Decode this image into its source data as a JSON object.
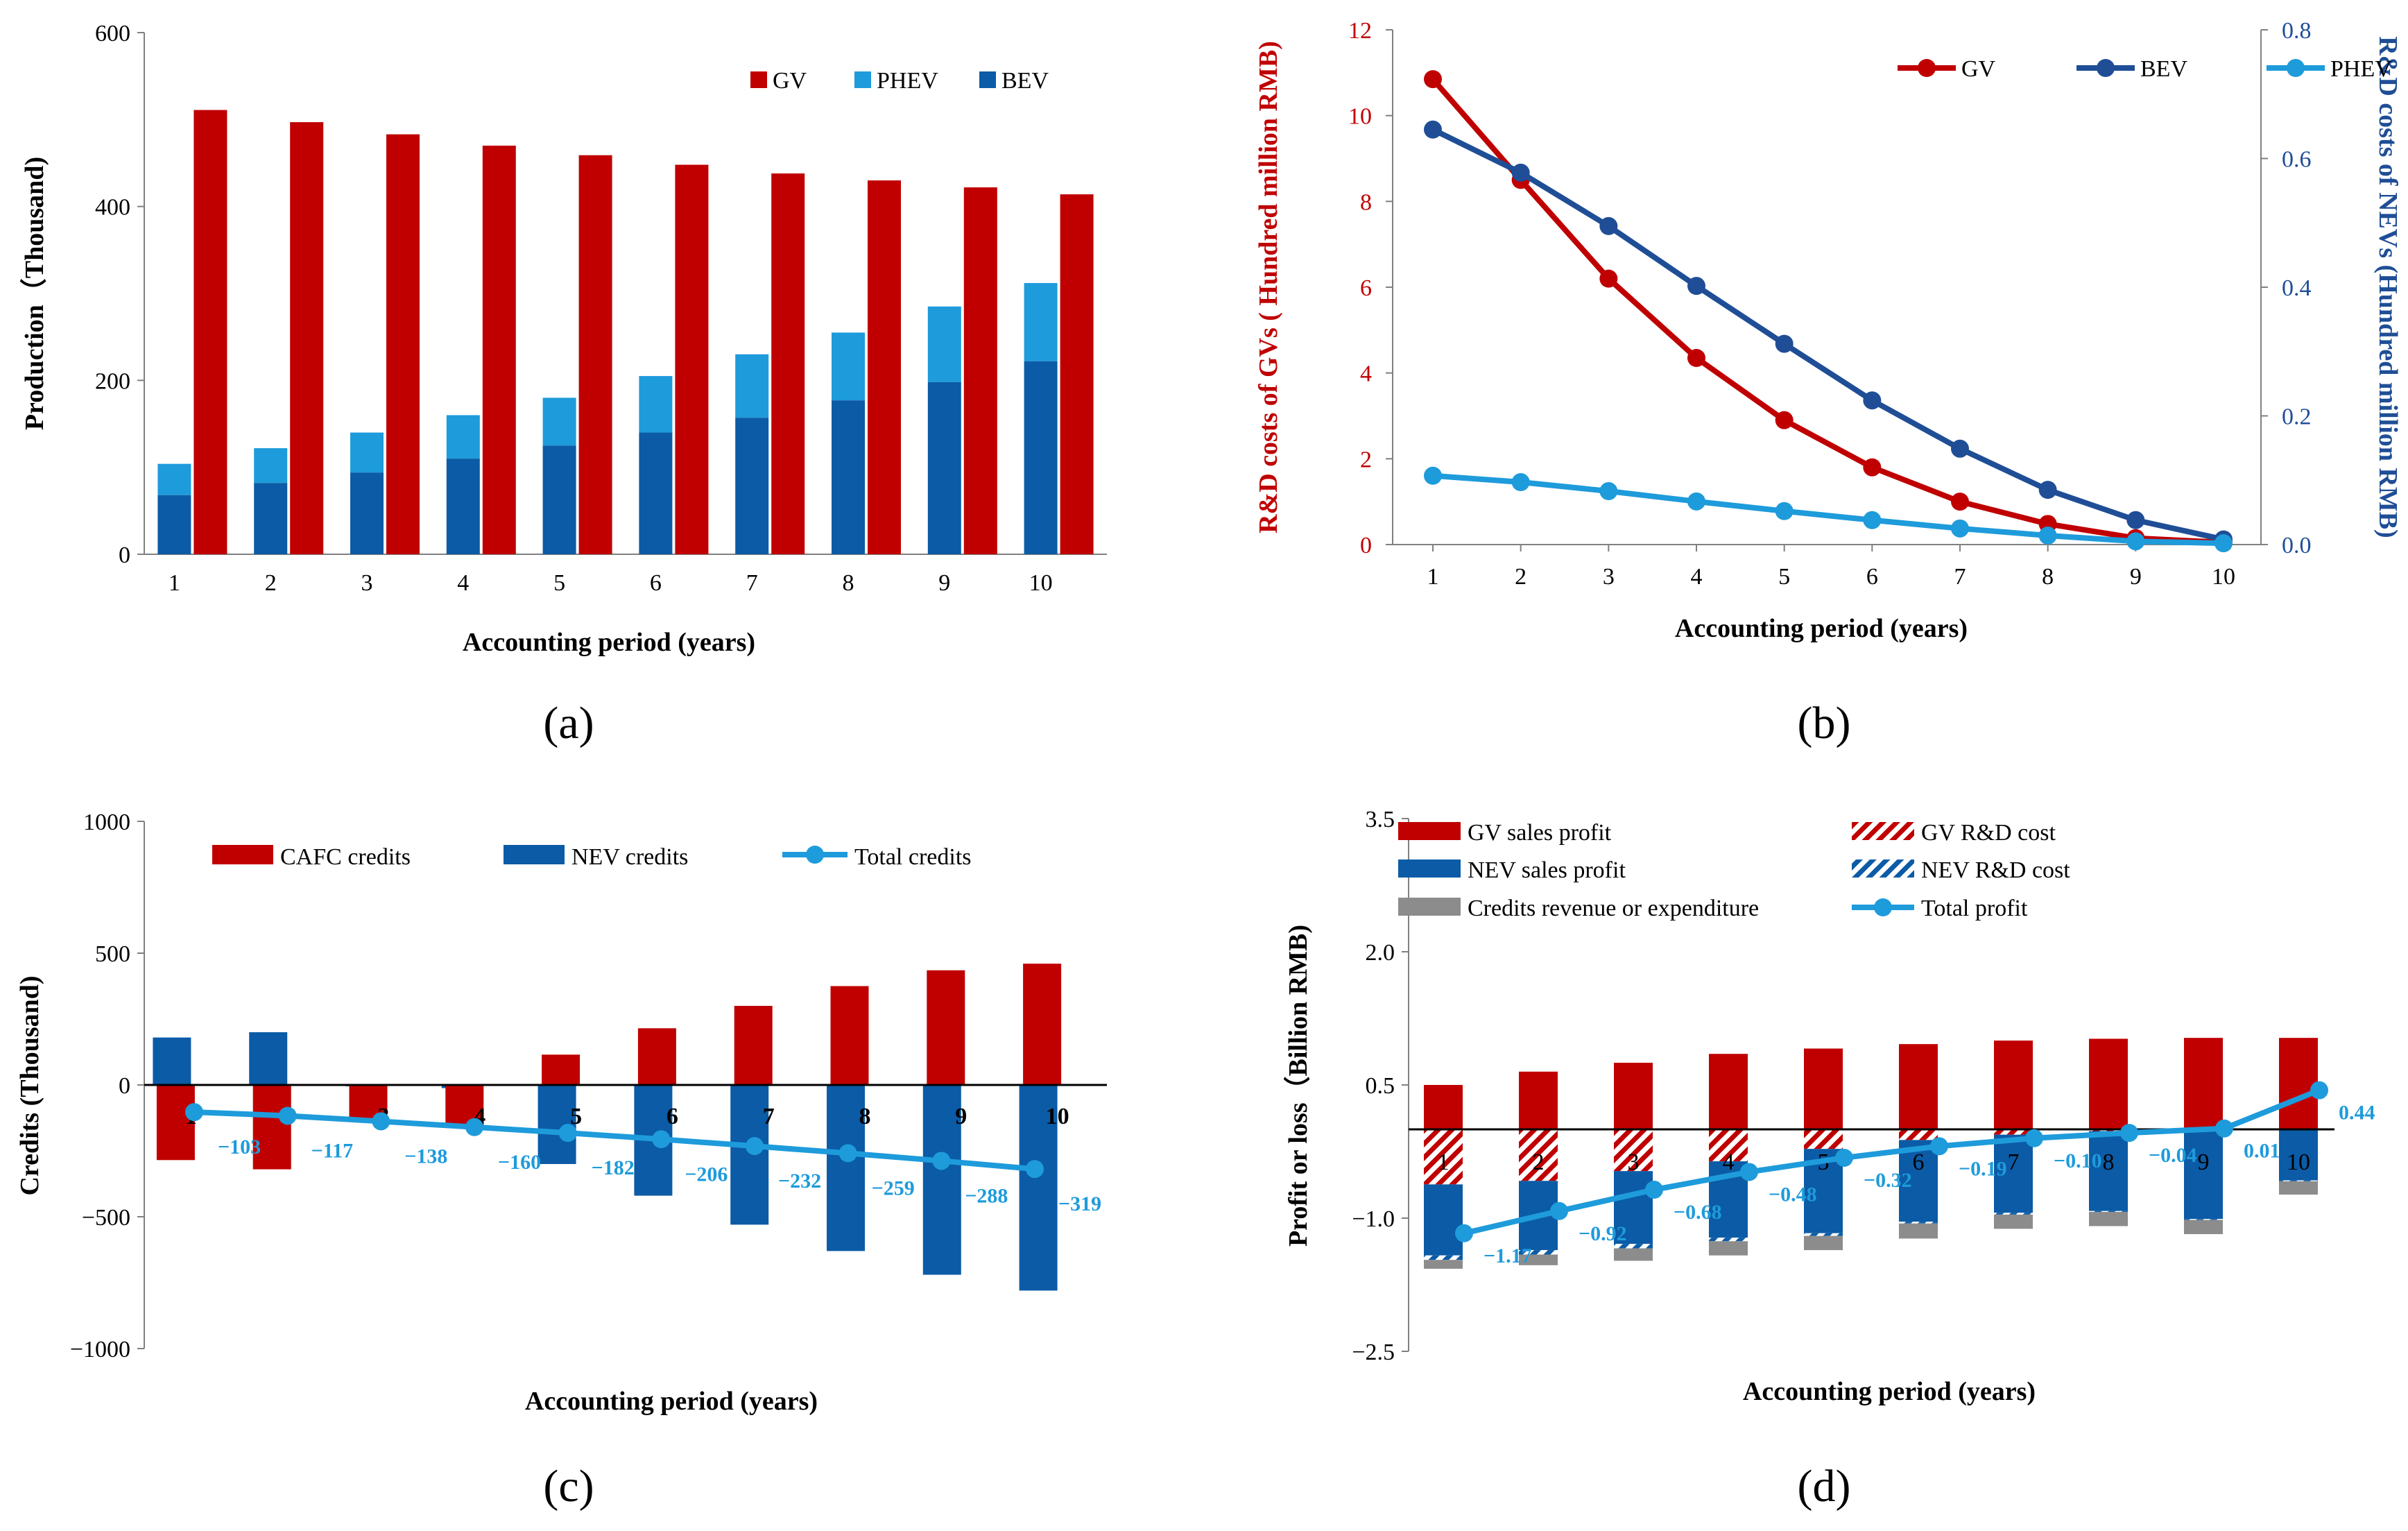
{
  "figure": {
    "captions": [
      "(a)",
      "(b)",
      "(c)",
      "(d)"
    ]
  },
  "colors": {
    "gv": "#C00000",
    "bev": "#0B5BA6",
    "phev": "#1E9BDB",
    "bev_line": "#1F4E96",
    "total": "#1E9BDB",
    "grey": "#8C8C8C",
    "axis_b_left": "#C00000",
    "axis_b_right": "#1F4E96"
  },
  "chart_data": [
    {
      "id": "a",
      "type": "bar",
      "title": "",
      "xlabel": "Accounting period (years)",
      "ylabel": "Production（Thousand)",
      "ylim": [
        0,
        600
      ],
      "yticks": [
        "0",
        "200",
        "400",
        "600"
      ],
      "categories": [
        "1",
        "2",
        "3",
        "4",
        "5",
        "6",
        "7",
        "8",
        "9",
        "10"
      ],
      "legend": [
        "GV",
        "PHEV",
        "BEV"
      ],
      "legend_position": "top-right",
      "series": [
        {
          "name": "GV",
          "values": [
            511,
            497,
            483,
            470,
            459,
            448,
            438,
            430,
            422,
            414
          ]
        },
        {
          "name": "PHEV",
          "values": [
            104,
            122,
            140,
            160,
            180,
            205,
            230,
            255,
            285,
            312
          ]
        },
        {
          "name": "BEV",
          "values": [
            68,
            82,
            94,
            110,
            125,
            140,
            157,
            177,
            198,
            222
          ]
        }
      ]
    },
    {
      "id": "b",
      "type": "line",
      "title": "",
      "xlabel": "Accounting period (years)",
      "ylabel_left": "R&D costs of GVs ( Hundred million RMB)",
      "ylabel_right": "R&D costs of NEVs (Hundred million RMB)",
      "ylim_left": [
        0,
        12
      ],
      "ylim_right": [
        0,
        0.8
      ],
      "yticks_left": [
        "0",
        "2",
        "4",
        "6",
        "8",
        "10",
        "12"
      ],
      "yticks_right": [
        "0.0",
        "0.2",
        "0.4",
        "0.6",
        "0.8"
      ],
      "categories": [
        "1",
        "2",
        "3",
        "4",
        "5",
        "6",
        "7",
        "8",
        "9",
        "10"
      ],
      "legend": [
        "GV",
        "BEV",
        "PHEV"
      ],
      "legend_position": "top-right",
      "series": [
        {
          "name": "GV",
          "axis": "left",
          "values": [
            10.85,
            8.5,
            6.2,
            4.35,
            2.9,
            1.8,
            1.0,
            0.48,
            0.15,
            0.05
          ]
        },
        {
          "name": "BEV",
          "axis": "right",
          "values": [
            0.645,
            0.578,
            0.495,
            0.402,
            0.312,
            0.224,
            0.149,
            0.085,
            0.038,
            0.008
          ]
        },
        {
          "name": "PHEV",
          "axis": "right",
          "values": [
            0.107,
            0.097,
            0.083,
            0.067,
            0.052,
            0.038,
            0.025,
            0.014,
            0.005,
            0.002
          ]
        }
      ]
    },
    {
      "id": "c",
      "type": "bar",
      "title": "",
      "xlabel": "Accounting period (years)",
      "ylabel": "Credits (Thousand)",
      "ylim": [
        -1000,
        1000
      ],
      "yticks": [
        "−1000",
        "−500",
        "0",
        "500",
        "1000"
      ],
      "categories": [
        "1",
        "2",
        "3",
        "4",
        "5",
        "6",
        "7",
        "8",
        "9",
        "10"
      ],
      "legend": [
        "CAFC credits",
        "NEV credits",
        "Total credits"
      ],
      "legend_position": "top",
      "series": [
        {
          "name": "CAFC credits",
          "values": [
            -285,
            -320,
            -140,
            -160,
            115,
            215,
            300,
            375,
            435,
            460
          ]
        },
        {
          "name": "NEV credits",
          "values": [
            180,
            200,
            -5,
            -12,
            -300,
            -420,
            -530,
            -630,
            -720,
            -780
          ]
        },
        {
          "name": "Total credits",
          "type": "line",
          "values": [
            -103,
            -117,
            -138,
            -160,
            -182,
            -206,
            -232,
            -259,
            -288,
            -319
          ]
        }
      ],
      "data_labels": [
        "−103",
        "−117",
        "−138",
        "−160",
        "−182",
        "−206",
        "−232",
        "−259",
        "−288",
        "−319"
      ]
    },
    {
      "id": "d",
      "type": "bar",
      "title": "",
      "xlabel": "Accounting period (years)",
      "ylabel": "Profit or loss（Billion RMB)",
      "ylim": [
        -2.5,
        3.5
      ],
      "yticks": [
        "−2.5",
        "−1.0",
        "0.5",
        "2.0",
        "3.5"
      ],
      "categories": [
        "1",
        "2",
        "3",
        "4",
        "5",
        "6",
        "7",
        "8",
        "9",
        "10"
      ],
      "legend": [
        "GV sales profit",
        "GV R&D cost",
        "NEV sales profit",
        "NEV R&D cost",
        "Credits revenue or expenditure",
        "Total profit"
      ],
      "legend_position": "top",
      "series": [
        {
          "name": "GV sales profit",
          "values": [
            0.5,
            0.65,
            0.75,
            0.85,
            0.91,
            0.96,
            1.0,
            1.02,
            1.03,
            1.03
          ]
        },
        {
          "name": "GV R&D cost",
          "values": [
            -0.62,
            -0.58,
            -0.47,
            -0.36,
            -0.22,
            -0.12,
            -0.06,
            -0.02,
            -0.01,
            -0.005
          ]
        },
        {
          "name": "NEV sales profit",
          "values": [
            -0.8,
            -0.78,
            -0.82,
            -0.86,
            -0.95,
            -0.92,
            -0.88,
            -0.9,
            -1.0,
            -0.57
          ]
        },
        {
          "name": "NEV R&D cost",
          "values": [
            -0.05,
            -0.05,
            -0.05,
            -0.04,
            -0.03,
            -0.02,
            -0.02,
            -0.01,
            -0.01,
            -0.01
          ]
        },
        {
          "name": "Credits revenue or expenditure",
          "values": [
            -0.1,
            -0.12,
            -0.14,
            -0.16,
            -0.16,
            -0.17,
            -0.16,
            -0.16,
            -0.16,
            -0.15
          ]
        },
        {
          "name": "Total profit",
          "type": "line",
          "values": [
            -1.17,
            -0.92,
            -0.68,
            -0.48,
            -0.32,
            -0.19,
            -0.1,
            -0.04,
            0.01,
            0.44
          ]
        }
      ],
      "data_labels": [
        "−1.17",
        "−0.92",
        "−0.68",
        "−0.48",
        "−0.32",
        "−0.19",
        "−0.10",
        "−0.04",
        "0.01",
        "0.44"
      ]
    }
  ]
}
